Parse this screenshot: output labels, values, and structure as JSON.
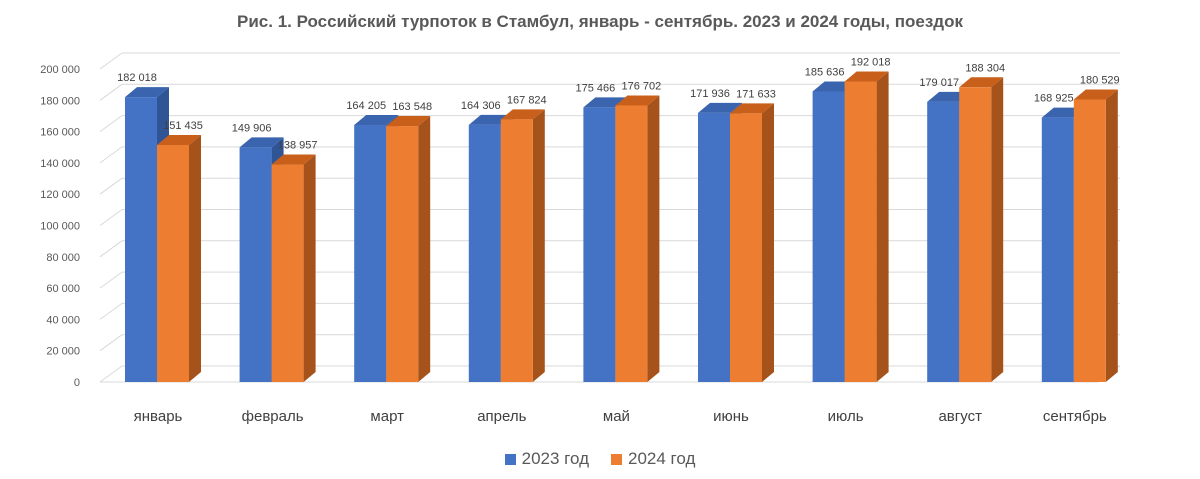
{
  "chart_data": {
    "type": "bar",
    "title": "Рис. 1. Российский турпоток в Стамбул, январь - сентябрь. 2023 и 2024 годы, поездок",
    "categories": [
      "январь",
      "февраль",
      "март",
      "апрель",
      "май",
      "июнь",
      "июль",
      "август",
      "сентябрь"
    ],
    "series": [
      {
        "name": "2023 год",
        "color": "#4472C4",
        "values": [
          182018,
          149906,
          164205,
          164306,
          175466,
          171936,
          185636,
          179017,
          168925
        ],
        "labels": [
          "182 018",
          "149 906",
          "164 205",
          "164 306",
          "175 466",
          "171 936",
          "185 636",
          "179 017",
          "168 925"
        ]
      },
      {
        "name": "2024 год",
        "color": "#ED7D31",
        "values": [
          151435,
          138957,
          163548,
          167824,
          176702,
          171633,
          192018,
          188304,
          180529
        ],
        "labels": [
          "151 435",
          "138 957",
          "163 548",
          "167 824",
          "176 702",
          "171 633",
          "192 018",
          "188 304",
          "180 529"
        ]
      }
    ],
    "ylim": [
      0,
      200000
    ],
    "yticks": [
      0,
      20000,
      40000,
      60000,
      80000,
      100000,
      120000,
      140000,
      160000,
      180000,
      200000
    ],
    "ytick_labels": [
      "0",
      "20 000",
      "40 000",
      "60 000",
      "80 000",
      "100 000",
      "120 000",
      "140 000",
      "160 000",
      "180 000",
      "200 000"
    ],
    "xlabel": "",
    "ylabel": "",
    "grid": true,
    "legend": "bottom"
  }
}
